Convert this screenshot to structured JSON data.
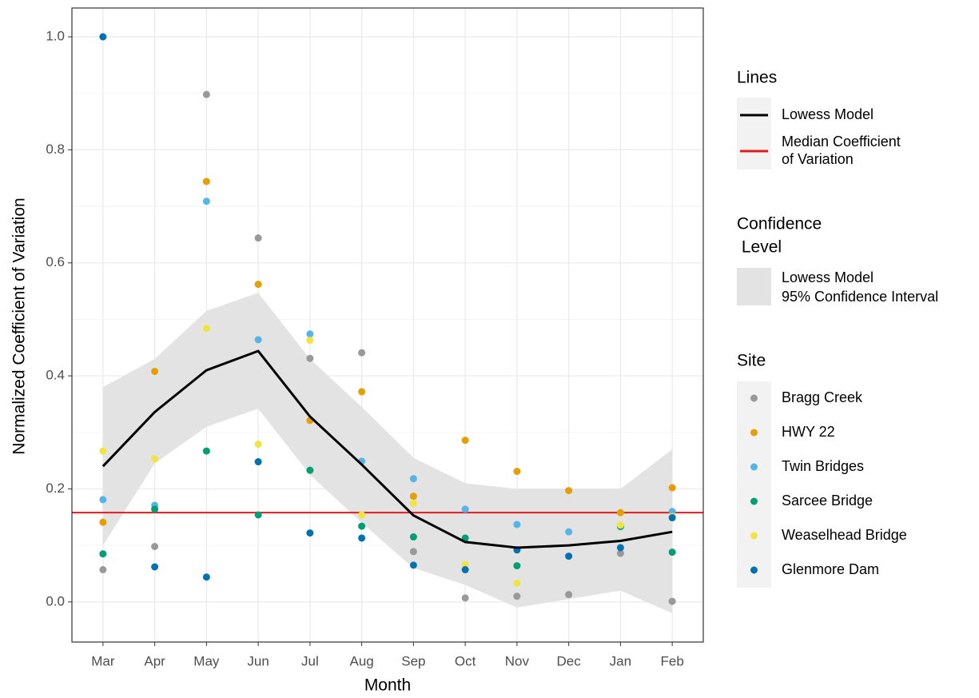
{
  "chart_data": {
    "type": "scatter",
    "x_label": "Month",
    "y_label": "Normalized Coefficient of Variation",
    "categories": [
      "Mar",
      "Apr",
      "May",
      "Jun",
      "Jul",
      "Aug",
      "Sep",
      "Oct",
      "Nov",
      "Dec",
      "Jan",
      "Feb"
    ],
    "ylim": [
      -0.071,
      1.051
    ],
    "yticks": [
      {
        "value": 0,
        "label": "0.0"
      },
      0.2,
      0.4,
      0.6,
      0.8,
      {
        "value": 1,
        "label": "1.0"
      }
    ],
    "grid": true,
    "series": [
      {
        "name": "Bragg Creek",
        "color": "#999999",
        "values": [
          0.057,
          0.098,
          0.898,
          0.644,
          0.431,
          0.441,
          0.089,
          0.007,
          0.01,
          0.013,
          0.086,
          0.001
        ]
      },
      {
        "name": "HWY 22",
        "color": "#E69F00",
        "values": [
          0.141,
          0.408,
          0.744,
          0.562,
          0.321,
          0.372,
          0.187,
          0.286,
          0.231,
          0.197,
          0.158,
          0.202
        ]
      },
      {
        "name": "Twin Bridges",
        "color": "#56B4E9",
        "values": [
          0.181,
          0.171,
          0.709,
          0.464,
          0.474,
          0.249,
          0.218,
          0.164,
          0.137,
          0.124,
          0.133,
          0.16
        ]
      },
      {
        "name": "Sarcee Bridge",
        "color": "#009E73",
        "values": [
          0.085,
          0.164,
          0.267,
          0.154,
          0.233,
          0.134,
          0.115,
          0.113,
          0.064,
          null,
          0.134,
          0.088
        ]
      },
      {
        "name": "Weaselhead Bridge",
        "color": "#F0E442",
        "values": [
          0.267,
          0.253,
          0.484,
          0.279,
          0.463,
          0.154,
          0.174,
          0.066,
          0.033,
          null,
          0.136,
          0.151
        ]
      },
      {
        "name": "Glenmore Dam",
        "color": "#0072B2",
        "values": [
          1.0,
          0.062,
          0.044,
          0.248,
          0.122,
          0.113,
          0.065,
          0.057,
          0.092,
          0.081,
          0.096,
          0.149
        ]
      }
    ],
    "lowess": {
      "name": "Lowess Model",
      "color": "#000000",
      "values": [
        0.24,
        0.336,
        0.41,
        0.444,
        0.328,
        0.243,
        0.153,
        0.106,
        0.096,
        0.1,
        0.108,
        0.124
      ]
    },
    "confidence": {
      "name": [
        "Lowess Model",
        "95% Confidence Interval"
      ],
      "color": "#e3e3e3",
      "lower": [
        0.1,
        0.245,
        0.31,
        0.342,
        0.225,
        0.14,
        0.06,
        0.03,
        -0.01,
        0.005,
        0.02,
        -0.02
      ],
      "upper": [
        0.38,
        0.43,
        0.515,
        0.547,
        0.43,
        0.345,
        0.255,
        0.21,
        0.2,
        0.2,
        0.2,
        0.27
      ]
    },
    "median": {
      "name": [
        "Median Coefficient",
        "of Variation"
      ],
      "color": "#E41A1C",
      "value": 0.158
    },
    "legend_titles": {
      "lines": "Lines",
      "confidence": [
        "Confidence",
        " Level"
      ],
      "site": "Site"
    }
  }
}
